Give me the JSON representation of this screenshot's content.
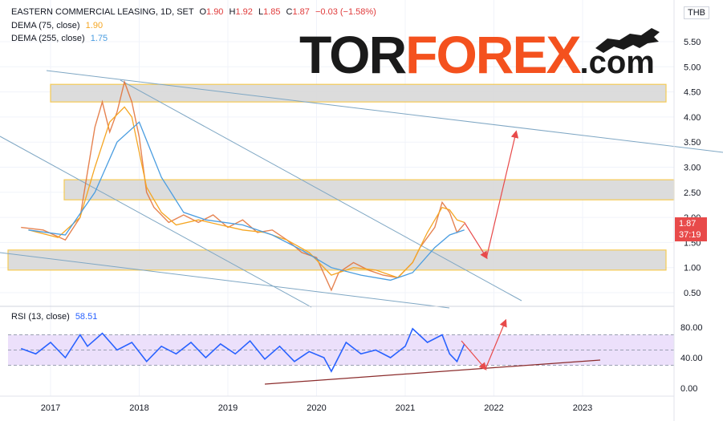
{
  "header": {
    "symbol": "EASTERN COMMERCIAL LEASING, 1D, SET",
    "o_label": "O",
    "o": "1.90",
    "h_label": "H",
    "h": "1.92",
    "l_label": "L",
    "l": "1.85",
    "c_label": "C",
    "c": "1.87",
    "change": "−0.03 (−1.58%)",
    "dema75_label": "DEMA (75, close)",
    "dema75_value": "1.90",
    "dema255_label": "DEMA (255, close)",
    "dema255_value": "1.75",
    "rsi_label": "RSI (13, close)",
    "rsi_value": "58.51"
  },
  "logo": {
    "part1": "TOR",
    "part2": "FOREX",
    "part3": ".com"
  },
  "price_axis": {
    "unit": "THB",
    "ticks": [
      "5.50",
      "5.00",
      "4.50",
      "4.00",
      "3.50",
      "3.00",
      "2.50",
      "2.00",
      "1.50",
      "1.00",
      "0.50"
    ]
  },
  "current_price": {
    "value": "1.87",
    "countdown": "37:19"
  },
  "rsi_axis": {
    "ticks": [
      "80.00",
      "40.00",
      "0.00"
    ]
  },
  "time_axis": {
    "ticks": [
      "2017",
      "2018",
      "2019",
      "2020",
      "2021",
      "2022",
      "2023"
    ]
  },
  "colors": {
    "price": "#e26d33",
    "dema75": "#f5a623",
    "dema255": "#4a9de0",
    "rsi_line": "#2962ff",
    "rsi_band": "#ece0fb",
    "zone_fill": "#d9d9d9",
    "zone_border": "#f5c542",
    "trendline": "#7fa7c4",
    "projection": "#e84a4a",
    "support": "#8b2c2c"
  },
  "chart_data": {
    "type": "line",
    "x_range": [
      "2016-09",
      "2023-06"
    ],
    "ylim": [
      0.3,
      5.9
    ],
    "series": [
      {
        "name": "DEMA (75, close)",
        "points": [
          [
            "2016-10",
            1.75
          ],
          [
            "2017-02",
            1.6
          ],
          [
            "2017-05",
            2.0
          ],
          [
            "2017-07",
            3.0
          ],
          [
            "2017-09",
            3.9
          ],
          [
            "2017-11",
            4.2
          ],
          [
            "2017-12",
            4.0
          ],
          [
            "2018-01",
            3.3
          ],
          [
            "2018-02",
            2.6
          ],
          [
            "2018-04",
            2.1
          ],
          [
            "2018-06",
            1.85
          ],
          [
            "2018-09",
            1.95
          ],
          [
            "2018-12",
            1.85
          ],
          [
            "2019-03",
            1.75
          ],
          [
            "2019-06",
            1.7
          ],
          [
            "2019-09",
            1.55
          ],
          [
            "2019-12",
            1.3
          ],
          [
            "2020-03",
            0.85
          ],
          [
            "2020-06",
            1.0
          ],
          [
            "2020-09",
            0.95
          ],
          [
            "2020-12",
            0.8
          ],
          [
            "2021-02",
            1.1
          ],
          [
            "2021-04",
            1.7
          ],
          [
            "2021-06",
            2.2
          ],
          [
            "2021-07",
            2.15
          ],
          [
            "2021-08",
            1.95
          ],
          [
            "2021-09",
            1.9
          ]
        ]
      },
      {
        "name": "DEMA (255, close)",
        "points": [
          [
            "2016-10",
            1.75
          ],
          [
            "2017-03",
            1.65
          ],
          [
            "2017-07",
            2.5
          ],
          [
            "2017-10",
            3.5
          ],
          [
            "2018-01",
            3.9
          ],
          [
            "2018-04",
            2.8
          ],
          [
            "2018-07",
            2.1
          ],
          [
            "2018-10",
            1.95
          ],
          [
            "2019-03",
            1.85
          ],
          [
            "2019-07",
            1.65
          ],
          [
            "2019-11",
            1.35
          ],
          [
            "2020-03",
            1.0
          ],
          [
            "2020-07",
            0.85
          ],
          [
            "2020-11",
            0.75
          ],
          [
            "2021-02",
            0.9
          ],
          [
            "2021-05",
            1.4
          ],
          [
            "2021-07",
            1.65
          ],
          [
            "2021-09",
            1.75
          ]
        ]
      }
    ],
    "price_points": [
      [
        "2016-09",
        1.8
      ],
      [
        "2016-12",
        1.75
      ],
      [
        "2017-03",
        1.55
      ],
      [
        "2017-05",
        2.0
      ],
      [
        "2017-06",
        2.9
      ],
      [
        "2017-07",
        3.8
      ],
      [
        "2017-08",
        4.3
      ],
      [
        "2017-09",
        3.7
      ],
      [
        "2017-10",
        4.1
      ],
      [
        "2017-11",
        4.7
      ],
      [
        "2017-12",
        4.3
      ],
      [
        "2018-01",
        3.6
      ],
      [
        "2018-02",
        2.5
      ],
      [
        "2018-03",
        2.2
      ],
      [
        "2018-05",
        1.9
      ],
      [
        "2018-07",
        2.05
      ],
      [
        "2018-09",
        1.9
      ],
      [
        "2018-11",
        2.05
      ],
      [
        "2019-01",
        1.8
      ],
      [
        "2019-03",
        1.95
      ],
      [
        "2019-05",
        1.7
      ],
      [
        "2019-07",
        1.75
      ],
      [
        "2019-09",
        1.55
      ],
      [
        "2019-11",
        1.3
      ],
      [
        "2020-01",
        1.2
      ],
      [
        "2020-03",
        0.55
      ],
      [
        "2020-04",
        0.9
      ],
      [
        "2020-06",
        1.1
      ],
      [
        "2020-08",
        0.95
      ],
      [
        "2020-10",
        0.85
      ],
      [
        "2020-12",
        0.8
      ],
      [
        "2021-02",
        1.1
      ],
      [
        "2021-03",
        1.4
      ],
      [
        "2021-05",
        1.8
      ],
      [
        "2021-06",
        2.3
      ],
      [
        "2021-07",
        2.1
      ],
      [
        "2021-08",
        1.7
      ],
      [
        "2021-09",
        1.87
      ]
    ],
    "zones": [
      [
        4.3,
        4.65
      ],
      [
        2.35,
        2.75
      ],
      [
        0.95,
        1.35
      ]
    ],
    "projection": [
      [
        "2021-09",
        1.9
      ],
      [
        "2021-12",
        1.2
      ],
      [
        "2022-04",
        3.7
      ]
    ],
    "rsi": {
      "name": "RSI (13, close)",
      "ylim": [
        0,
        100
      ],
      "band": [
        30,
        70
      ],
      "points": [
        [
          "2016-09",
          52
        ],
        [
          "2016-11",
          45
        ],
        [
          "2017-01",
          60
        ],
        [
          "2017-03",
          40
        ],
        [
          "2017-05",
          70
        ],
        [
          "2017-06",
          55
        ],
        [
          "2017-08",
          72
        ],
        [
          "2017-10",
          50
        ],
        [
          "2017-12",
          60
        ],
        [
          "2018-02",
          35
        ],
        [
          "2018-04",
          55
        ],
        [
          "2018-06",
          45
        ],
        [
          "2018-08",
          60
        ],
        [
          "2018-10",
          40
        ],
        [
          "2018-12",
          58
        ],
        [
          "2019-02",
          45
        ],
        [
          "2019-04",
          62
        ],
        [
          "2019-06",
          38
        ],
        [
          "2019-08",
          55
        ],
        [
          "2019-10",
          35
        ],
        [
          "2019-12",
          48
        ],
        [
          "2020-02",
          40
        ],
        [
          "2020-03",
          22
        ],
        [
          "2020-05",
          60
        ],
        [
          "2020-07",
          45
        ],
        [
          "2020-09",
          50
        ],
        [
          "2020-11",
          40
        ],
        [
          "2021-01",
          55
        ],
        [
          "2021-02",
          78
        ],
        [
          "2021-04",
          60
        ],
        [
          "2021-06",
          70
        ],
        [
          "2021-07",
          45
        ],
        [
          "2021-08",
          35
        ],
        [
          "2021-09",
          58
        ]
      ]
    }
  }
}
